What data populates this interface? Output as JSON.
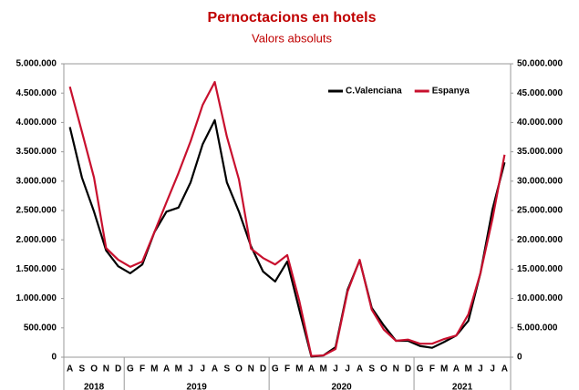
{
  "chart_data": {
    "type": "line",
    "title": "Pernoctacions en hotels",
    "subtitle": "Valors absoluts",
    "categories": [
      "A",
      "S",
      "O",
      "N",
      "D",
      "G",
      "F",
      "M",
      "A",
      "M",
      "J",
      "J",
      "A",
      "S",
      "O",
      "N",
      "D",
      "G",
      "F",
      "M",
      "A",
      "M",
      "J",
      "J",
      "A",
      "S",
      "O",
      "N",
      "D",
      "G",
      "F",
      "M",
      "A",
      "M",
      "J",
      "J",
      "A"
    ],
    "category_groups": [
      "2018",
      "2019",
      "2020",
      "2021"
    ],
    "series": [
      {
        "name": "C.Valenciana",
        "color": "#000000",
        "axis": "y",
        "values": [
          3920000,
          3060000,
          2480000,
          1820000,
          1550000,
          1430000,
          1580000,
          2130000,
          2480000,
          2550000,
          2980000,
          3630000,
          4040000,
          2980000,
          2480000,
          1890000,
          1460000,
          1290000,
          1630000,
          810000,
          10000,
          30000,
          170000,
          1150000,
          1650000,
          840000,
          540000,
          280000,
          280000,
          190000,
          160000,
          260000,
          370000,
          620000,
          1430000,
          2520000,
          3320000
        ]
      },
      {
        "name": "Espanya",
        "color": "#c8102e",
        "axis": "y2",
        "values": [
          46100000,
          38400000,
          30600000,
          18600000,
          16600000,
          15400000,
          16300000,
          21300000,
          26400000,
          31400000,
          36800000,
          43000000,
          46900000,
          37600000,
          30300000,
          18500000,
          16900000,
          15800000,
          17400000,
          9600000,
          200000,
          300000,
          1400000,
          11200000,
          16600000,
          8100000,
          4700000,
          2800000,
          3000000,
          2300000,
          2300000,
          3100000,
          3700000,
          7300000,
          14300000,
          23600000,
          34500000
        ]
      }
    ],
    "ylim": [
      0,
      5000000
    ],
    "yticks": [
      0,
      {
        "value": 500000,
        "label": "500.000"
      },
      {
        "value": 1000000,
        "label": "1.000.000"
      },
      {
        "value": 1500000,
        "label": "1.500.000"
      },
      {
        "value": 2000000,
        "label": "2.000.000"
      },
      {
        "value": 2500000,
        "label": "2.500.000"
      },
      {
        "value": 3000000,
        "label": "3.000.000"
      },
      {
        "value": 3500000,
        "label": "3.500.000"
      },
      {
        "value": 4000000,
        "label": "4.000.000"
      },
      {
        "value": 4500000,
        "label": "4.500.000"
      },
      {
        "value": 5000000,
        "label": "5.000.000"
      }
    ],
    "y2lim": [
      0,
      50000000
    ],
    "y2ticks": [
      0,
      {
        "value": 5000000,
        "label": "5.000.000"
      },
      {
        "value": 10000000,
        "label": "10.000.000"
      },
      {
        "value": 15000000,
        "label": "15.000.000"
      },
      {
        "value": 20000000,
        "label": "20.000.000"
      },
      {
        "value": 25000000,
        "label": "25.000.000"
      },
      {
        "value": 30000000,
        "label": "30.000.000"
      },
      {
        "value": 35000000,
        "label": "35.000.000"
      },
      {
        "value": 40000000,
        "label": "40.000.000"
      },
      {
        "value": 45000000,
        "label": "45.000.000"
      },
      {
        "value": 50000000,
        "label": "50.000.000"
      }
    ],
    "legend": "top-right"
  }
}
